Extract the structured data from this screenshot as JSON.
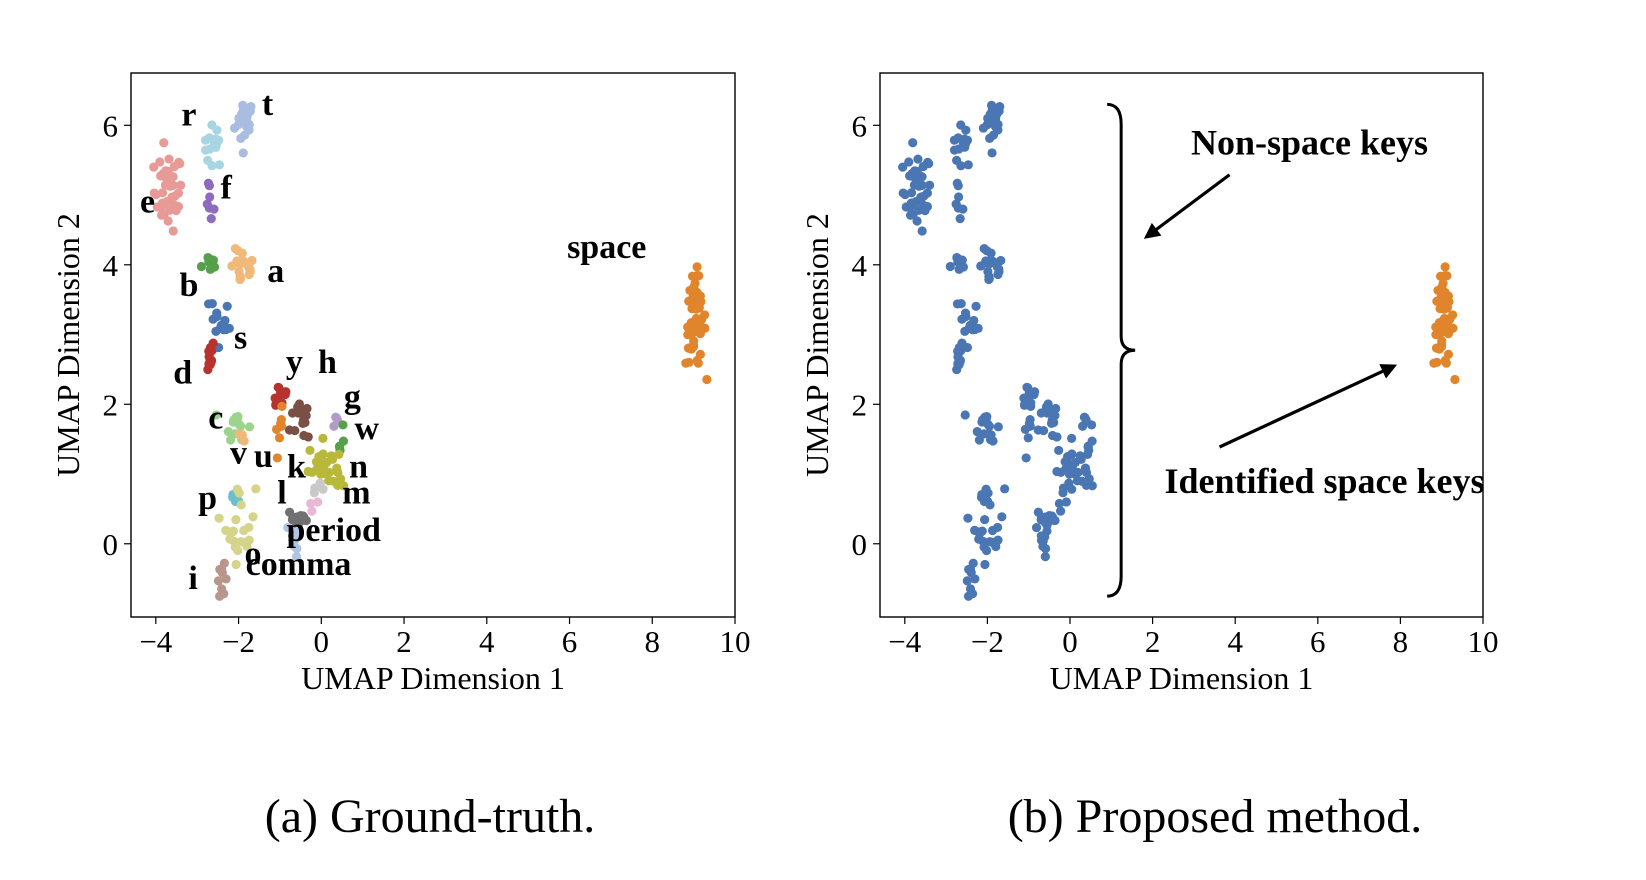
{
  "captions": [
    "(a) Ground-truth.",
    "(b) Proposed method."
  ],
  "colors": {
    "nonspace": "#4a76b4",
    "space": "#e1852c"
  },
  "chart_data": [
    {
      "type": "scatter",
      "xlabel": "UMAP Dimension 1",
      "ylabel": "UMAP Dimension 2",
      "xlim": [
        -4.6,
        10
      ],
      "ylim": [
        -1.05,
        6.75
      ],
      "xticks": [
        -4,
        -2,
        0,
        2,
        4,
        6,
        8,
        10
      ],
      "yticks": [
        0,
        2,
        4,
        6
      ],
      "xtick_labels": [
        "−4",
        "−2",
        "0",
        "2",
        "4",
        "6",
        "8",
        "10"
      ],
      "ytick_labels": [
        "0",
        "2",
        "4",
        "6"
      ],
      "grid": false,
      "clusters": [
        {
          "name": "t",
          "color": "#a9bde0",
          "cx": -1.85,
          "cy": 6.05,
          "sx": 0.12,
          "sy": 0.17,
          "n": 20,
          "label_x": -1.3,
          "label_y": 6.15
        },
        {
          "name": "r",
          "color": "#a8d5e2",
          "cx": -2.6,
          "cy": 5.7,
          "sx": 0.12,
          "sy": 0.15,
          "n": 14,
          "label_x": -3.2,
          "label_y": 6.0
        },
        {
          "name": "e",
          "color": "#e89a96",
          "cx": -3.7,
          "cy": 5.05,
          "sx": 0.17,
          "sy": 0.28,
          "n": 40,
          "label_x": -4.2,
          "label_y": 4.75
        },
        {
          "name": "f",
          "color": "#8e6bbf",
          "cx": -2.7,
          "cy": 4.9,
          "sx": 0.05,
          "sy": 0.18,
          "n": 7,
          "label_x": -2.3,
          "label_y": 4.95
        },
        {
          "name": "a",
          "color": "#f0b97a",
          "cx": -1.9,
          "cy": 3.95,
          "sx": 0.15,
          "sy": 0.13,
          "n": 18,
          "label_x": -1.1,
          "label_y": 3.75
        },
        {
          "name": "b",
          "color": "#55a04a",
          "cx": -2.75,
          "cy": 4.02,
          "sx": 0.13,
          "sy": 0.06,
          "n": 7,
          "label_x": -3.2,
          "label_y": 3.55
        },
        {
          "name": "s",
          "color": "#4a76b4",
          "cx": -2.45,
          "cy": 3.15,
          "sx": 0.12,
          "sy": 0.27,
          "n": 18,
          "label_x": -1.95,
          "label_y": 2.8
        },
        {
          "name": "d",
          "color": "#b8332e",
          "cx": -2.75,
          "cy": 2.7,
          "sx": 0.09,
          "sy": 0.12,
          "n": 11,
          "label_x": -3.35,
          "label_y": 2.3
        },
        {
          "name": "y",
          "color": "#b8332e",
          "cx": -1.0,
          "cy": 2.12,
          "sx": 0.11,
          "sy": 0.11,
          "n": 14,
          "label_x": -0.65,
          "label_y": 2.45
        },
        {
          "name": "h",
          "color": "#7a5046",
          "cx": -0.4,
          "cy": 1.8,
          "sx": 0.17,
          "sy": 0.2,
          "n": 14,
          "label_x": 0.15,
          "label_y": 2.45
        },
        {
          "name": "g",
          "color": "#b49ac9",
          "cx": 0.35,
          "cy": 1.8,
          "sx": 0.04,
          "sy": 0.09,
          "n": 4,
          "label_x": 0.75,
          "label_y": 1.95
        },
        {
          "name": "w",
          "color": "#55a04a",
          "cx": 0.45,
          "cy": 1.48,
          "sx": 0.05,
          "sy": 0.15,
          "n": 5,
          "label_x": 1.1,
          "label_y": 1.5
        },
        {
          "name": "c",
          "color": "#9dd48c",
          "cx": -2.05,
          "cy": 1.72,
          "sx": 0.14,
          "sy": 0.11,
          "n": 14,
          "label_x": -2.55,
          "label_y": 1.65
        },
        {
          "name": "v",
          "color": "#f0b97a",
          "cx": -1.95,
          "cy": 1.55,
          "sx": 0.05,
          "sy": 0.06,
          "n": 3,
          "label_x": -2.0,
          "label_y": 1.15
        },
        {
          "name": "u",
          "color": "#e1852c",
          "cx": -1.0,
          "cy": 1.6,
          "sx": 0.06,
          "sy": 0.16,
          "n": 7,
          "label_x": -1.4,
          "label_y": 1.1
        },
        {
          "name": "k",
          "color": "#b8b83a",
          "cx": 0.05,
          "cy": 1.15,
          "sx": 0.18,
          "sy": 0.16,
          "n": 24,
          "label_x": -0.6,
          "label_y": 0.95
        },
        {
          "name": "n",
          "color": "#b8b83a",
          "cx": 0.3,
          "cy": 0.95,
          "sx": 0.06,
          "sy": 0.07,
          "n": 4,
          "label_x": 0.9,
          "label_y": 0.95
        },
        {
          "name": "p",
          "color": "#6cc0cc",
          "cx": -2.05,
          "cy": 0.66,
          "sx": 0.11,
          "sy": 0.06,
          "n": 12,
          "label_x": -2.75,
          "label_y": 0.5
        },
        {
          "name": "l",
          "color": "#d4d48a",
          "cx": -1.95,
          "cy": 0.3,
          "sx": 0.18,
          "sy": 0.28,
          "n": 22,
          "label_x": -0.95,
          "label_y": 0.58
        },
        {
          "name": "m",
          "color": "#c9c9c9",
          "cx": -0.1,
          "cy": 0.73,
          "sx": 0.08,
          "sy": 0.06,
          "n": 4,
          "label_x": 0.85,
          "label_y": 0.58
        },
        {
          "name": "period",
          "color": "#707070",
          "cx": -0.55,
          "cy": 0.35,
          "sx": 0.14,
          "sy": 0.07,
          "n": 14,
          "label_x": 0.3,
          "label_y": 0.04
        },
        {
          "name": "comma",
          "color": "#b0c4e6",
          "cx": -0.6,
          "cy": 0.08,
          "sx": 0.12,
          "sy": 0.12,
          "n": 8,
          "label_x": -0.55,
          "label_y": -0.45
        },
        {
          "name": "o",
          "color": "#e8b8d4",
          "cx": -0.2,
          "cy": 0.6,
          "sx": 0.07,
          "sy": 0.05,
          "n": 3,
          "label_x": -1.65,
          "label_y": -0.3
        },
        {
          "name": "i",
          "color": "#b8968c",
          "cx": -2.4,
          "cy": -0.52,
          "sx": 0.06,
          "sy": 0.11,
          "n": 9,
          "label_x": -3.1,
          "label_y": -0.65
        },
        {
          "name": "space",
          "color": "#e1852c",
          "cx": 9.05,
          "cy": 3.2,
          "sx": 0.12,
          "sy": 0.33,
          "n": 55,
          "label_x": 6.9,
          "label_y": 4.1
        }
      ]
    },
    {
      "type": "scatter",
      "xlabel": "UMAP Dimension 1",
      "ylabel": "UMAP Dimension 2",
      "xlim": [
        -4.6,
        10
      ],
      "ylim": [
        -1.05,
        6.75
      ],
      "xticks": [
        -4,
        -2,
        0,
        2,
        4,
        6,
        8,
        10
      ],
      "yticks": [
        0,
        2,
        4,
        6
      ],
      "xtick_labels": [
        "−4",
        "−2",
        "0",
        "2",
        "4",
        "6",
        "8",
        "10"
      ],
      "ytick_labels": [
        "0",
        "2",
        "4",
        "6"
      ],
      "grid": false,
      "series": [
        {
          "name": "Non-space keys",
          "color": "#4a76b4"
        },
        {
          "name": "Identified space keys",
          "color": "#e1852c"
        }
      ],
      "annotations": [
        {
          "text": "Non-space keys",
          "target_x": 1.85,
          "target_y": 4.4,
          "label_x": 5.8,
          "label_y": 5.75
        },
        {
          "text": "Identified space keys",
          "target_x": 7.85,
          "target_y": 2.55,
          "label_x": 5.8,
          "label_y": 0.9
        }
      ],
      "brace": {
        "x": 0.9,
        "y_top": 6.3,
        "y_bottom": -0.75
      }
    }
  ]
}
